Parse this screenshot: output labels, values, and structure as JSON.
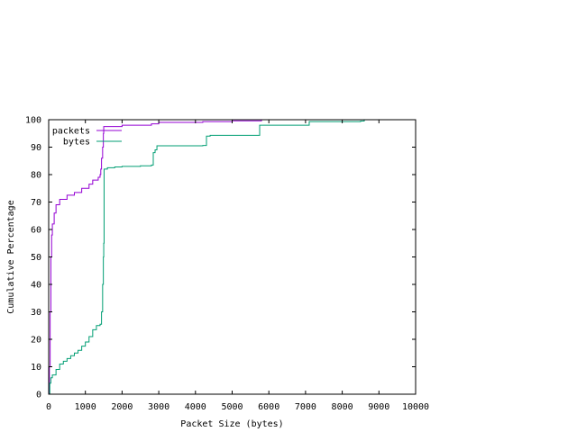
{
  "chart_data": {
    "type": "line",
    "title": "",
    "xlabel": "Packet Size (bytes)",
    "ylabel": "Cumulative Percentage",
    "xlim": [
      0,
      10000
    ],
    "ylim": [
      0,
      100
    ],
    "xticks": [
      0,
      1000,
      2000,
      3000,
      4000,
      5000,
      6000,
      7000,
      8000,
      9000,
      10000
    ],
    "yticks": [
      0,
      10,
      20,
      30,
      40,
      50,
      60,
      70,
      80,
      90,
      100
    ],
    "grid": false,
    "legend_position": "top-left",
    "series": [
      {
        "name": "packets",
        "color": "#9400d3",
        "step": true,
        "points": [
          [
            0,
            0
          ],
          [
            20,
            10
          ],
          [
            40,
            30
          ],
          [
            60,
            50
          ],
          [
            80,
            58
          ],
          [
            100,
            62
          ],
          [
            150,
            66
          ],
          [
            200,
            69
          ],
          [
            300,
            71
          ],
          [
            500,
            72.5
          ],
          [
            700,
            73.5
          ],
          [
            900,
            75
          ],
          [
            1100,
            76.5
          ],
          [
            1200,
            78
          ],
          [
            1350,
            79
          ],
          [
            1400,
            80
          ],
          [
            1420,
            82
          ],
          [
            1440,
            86
          ],
          [
            1470,
            90
          ],
          [
            1490,
            95
          ],
          [
            1500,
            97.5
          ],
          [
            2000,
            98
          ],
          [
            2800,
            98.5
          ],
          [
            3000,
            99
          ],
          [
            4200,
            99.3
          ],
          [
            5000,
            99.6
          ],
          [
            5800,
            99.8
          ],
          [
            5800,
            100
          ]
        ]
      },
      {
        "name": "bytes",
        "color": "#009e73",
        "step": true,
        "points": [
          [
            0,
            0
          ],
          [
            30,
            4
          ],
          [
            60,
            6
          ],
          [
            100,
            7
          ],
          [
            200,
            9
          ],
          [
            300,
            11
          ],
          [
            400,
            12
          ],
          [
            500,
            13
          ],
          [
            600,
            14
          ],
          [
            700,
            15
          ],
          [
            800,
            16
          ],
          [
            900,
            17.5
          ],
          [
            1000,
            19
          ],
          [
            1100,
            21
          ],
          [
            1200,
            23.5
          ],
          [
            1300,
            25
          ],
          [
            1400,
            25.5
          ],
          [
            1440,
            30
          ],
          [
            1470,
            40
          ],
          [
            1490,
            50
          ],
          [
            1500,
            55
          ],
          [
            1510,
            82
          ],
          [
            1600,
            82.5
          ],
          [
            1800,
            82.8
          ],
          [
            2000,
            83
          ],
          [
            2500,
            83.2
          ],
          [
            2800,
            83.5
          ],
          [
            2850,
            88
          ],
          [
            2900,
            89
          ],
          [
            2950,
            90.5
          ],
          [
            3500,
            90.5
          ],
          [
            4200,
            90.6
          ],
          [
            4300,
            94
          ],
          [
            4400,
            94.3
          ],
          [
            5700,
            94.3
          ],
          [
            5750,
            98
          ],
          [
            7000,
            98
          ],
          [
            7100,
            99.3
          ],
          [
            8500,
            99.5
          ],
          [
            8600,
            100
          ]
        ]
      }
    ]
  }
}
